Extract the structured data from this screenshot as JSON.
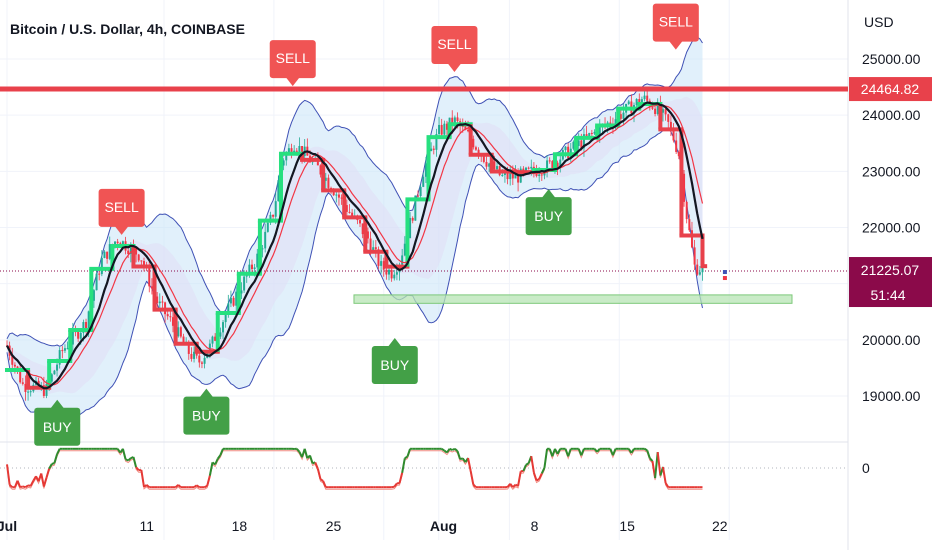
{
  "header": {
    "title": "Bitcoin / U.S. Dollar, 4h, COINBASE",
    "currency": "USD"
  },
  "colors": {
    "resistance": "#e8414b",
    "support_fill": "#b7e4b4",
    "support_edge": "#7dc87a",
    "bands_line": "#3f51b5",
    "bands_fill": "#c9e3f7",
    "bands_fill2": "#e2dcf5",
    "up": "#22ab94",
    "down": "#f23645",
    "thick_green": "#26e07f",
    "thick_red": "#e8414b",
    "price_line": "#131722",
    "sell": "#f05454",
    "buy": "#43a047",
    "last_price_bg": "#8b0a4a",
    "osc_green": "#2e8b2e",
    "osc_red": "#e53935"
  },
  "chart_data": {
    "type": "candlestick",
    "symbol": "Bitcoin / U.S. Dollar",
    "interval": "4h",
    "exchange": "COINBASE",
    "currency": "USD",
    "x_tick_labels": [
      "Jul",
      "11",
      "18",
      "25",
      "Aug",
      "8",
      "15",
      "22"
    ],
    "y_tick_labels": [
      "25000.00",
      "24000.00",
      "23000.00",
      "22000.00",
      "20000.00",
      "19000.00"
    ],
    "ylim": [
      18700,
      25600
    ],
    "resistance_level": 24464.82,
    "resistance_label": "24464.82",
    "support_zone": [
      20650,
      20800
    ],
    "last_price": 21225.07,
    "last_price_label": "21225.07",
    "countdown_label": "51:44",
    "close_path": [
      {
        "day": 0,
        "price": 19900
      },
      {
        "day": 1,
        "price": 19200
      },
      {
        "day": 2.5,
        "price": 19100
      },
      {
        "day": 3.5,
        "price": 19800
      },
      {
        "day": 5,
        "price": 20300
      },
      {
        "day": 6,
        "price": 21400
      },
      {
        "day": 7,
        "price": 21800
      },
      {
        "day": 8.5,
        "price": 21500
      },
      {
        "day": 9.5,
        "price": 20700
      },
      {
        "day": 10.5,
        "price": 20300
      },
      {
        "day": 11.5,
        "price": 19800
      },
      {
        "day": 12.2,
        "price": 19600
      },
      {
        "day": 13,
        "price": 19900
      },
      {
        "day": 14,
        "price": 20500
      },
      {
        "day": 15,
        "price": 21000
      },
      {
        "day": 16,
        "price": 21500
      },
      {
        "day": 17,
        "price": 22300
      },
      {
        "day": 17.5,
        "price": 23200
      },
      {
        "day": 18.3,
        "price": 23500
      },
      {
        "day": 19,
        "price": 23300
      },
      {
        "day": 20,
        "price": 23000
      },
      {
        "day": 21,
        "price": 22600
      },
      {
        "day": 22,
        "price": 22200
      },
      {
        "day": 23,
        "price": 21800
      },
      {
        "day": 23.8,
        "price": 21300
      },
      {
        "day": 24.5,
        "price": 21200
      },
      {
        "day": 25,
        "price": 21400
      },
      {
        "day": 25.8,
        "price": 22200
      },
      {
        "day": 26.5,
        "price": 23000
      },
      {
        "day": 27.5,
        "price": 23700
      },
      {
        "day": 28.5,
        "price": 23900
      },
      {
        "day": 29.5,
        "price": 23600
      },
      {
        "day": 30.5,
        "price": 23200
      },
      {
        "day": 31.5,
        "price": 22900
      },
      {
        "day": 32.5,
        "price": 22900
      },
      {
        "day": 33.5,
        "price": 23000
      },
      {
        "day": 34.5,
        "price": 23100
      },
      {
        "day": 35.5,
        "price": 23300
      },
      {
        "day": 36.5,
        "price": 23500
      },
      {
        "day": 37.5,
        "price": 23700
      },
      {
        "day": 38.5,
        "price": 23900
      },
      {
        "day": 39.5,
        "price": 24100
      },
      {
        "day": 40.5,
        "price": 24300
      },
      {
        "day": 41.5,
        "price": 24100
      },
      {
        "day": 42.2,
        "price": 23800
      },
      {
        "day": 42.8,
        "price": 23300
      },
      {
        "day": 43.3,
        "price": 22200
      },
      {
        "day": 43.8,
        "price": 21300
      },
      {
        "day": 44.3,
        "price": 21250
      }
    ],
    "signals": [
      {
        "type": "SELL",
        "day": 7.3,
        "price": 21850
      },
      {
        "day": 18.2,
        "price": 24500,
        "type": "SELL"
      },
      {
        "day": 28.5,
        "price": 24750,
        "type": "SELL"
      },
      {
        "day": 42.6,
        "price": 25150,
        "type": "SELL"
      },
      {
        "day": 3.2,
        "price": 18950,
        "type": "BUY"
      },
      {
        "day": 12.7,
        "price": 19150,
        "type": "BUY"
      },
      {
        "day": 24.7,
        "price": 20050,
        "type": "BUY"
      },
      {
        "day": 34.5,
        "price": 22700,
        "type": "BUY"
      }
    ],
    "oscillator": {
      "zero_label": "0"
    },
    "grid": true
  }
}
